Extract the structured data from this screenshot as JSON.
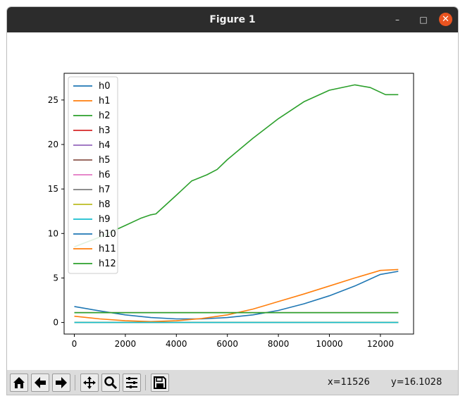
{
  "window": {
    "title": "Figure 1"
  },
  "toolbar": {
    "buttons": [
      "home-icon",
      "back-arrow-icon",
      "forward-arrow-icon",
      "pan-icon",
      "zoom-icon",
      "subplots-icon",
      "save-icon"
    ],
    "coord_x": "x=11526",
    "coord_y": "y=16.1028"
  },
  "colors": {
    "titlebar": "#2c2c2c",
    "close": "#e95420"
  },
  "chart_data": {
    "type": "line",
    "xlim": [
      -400,
      13300
    ],
    "ylim": [
      -1.3,
      28.0
    ],
    "xticks": [
      0,
      2000,
      4000,
      6000,
      8000,
      10000,
      12000
    ],
    "xtick_labels": [
      "0",
      "2000",
      "4000",
      "6000",
      "8000",
      "10000",
      "12000"
    ],
    "yticks": [
      0,
      5,
      10,
      15,
      20,
      25
    ],
    "ytick_labels": [
      "0",
      "5",
      "10",
      "15",
      "20",
      "25"
    ],
    "legend": "upper-left",
    "series": [
      {
        "name": "h0",
        "color": "#1f77b4",
        "x": [
          0,
          1000,
          2000,
          3000,
          4000,
          5000,
          6000,
          7000,
          8000,
          9000,
          10000,
          11000,
          12000,
          12700
        ],
        "y": [
          1.8,
          1.3,
          0.85,
          0.55,
          0.4,
          0.4,
          0.55,
          0.85,
          1.35,
          2.1,
          3.0,
          4.1,
          5.4,
          5.75
        ]
      },
      {
        "name": "h1",
        "color": "#ff7f0e",
        "x": [
          0,
          1000,
          2000,
          3000,
          4000,
          5000,
          6000,
          7000,
          8000,
          9000,
          10000,
          11000,
          12000,
          12700
        ],
        "y": [
          0.7,
          0.4,
          0.2,
          0.1,
          0.2,
          0.45,
          0.85,
          1.5,
          2.35,
          3.2,
          4.1,
          5.0,
          5.85,
          5.95
        ]
      },
      {
        "name": "h2",
        "color": "#2ca02c",
        "x": [
          0,
          1000,
          2000,
          2600,
          3000,
          3200,
          4000,
          4600,
          5200,
          5600,
          6000,
          7000,
          8000,
          9000,
          10000,
          11000,
          11600,
          12200,
          12700
        ],
        "y": [
          8.5,
          9.6,
          10.9,
          11.7,
          12.1,
          12.2,
          14.3,
          15.9,
          16.6,
          17.2,
          18.3,
          20.7,
          22.9,
          24.8,
          26.1,
          26.7,
          26.4,
          25.6,
          25.6
        ]
      },
      {
        "name": "h3",
        "color": "#d62728",
        "x": [
          0,
          12700
        ],
        "y": [
          0,
          0
        ]
      },
      {
        "name": "h4",
        "color": "#9467bd",
        "x": [
          0,
          12700
        ],
        "y": [
          0,
          0
        ]
      },
      {
        "name": "h5",
        "color": "#8c564b",
        "x": [
          0,
          12700
        ],
        "y": [
          0,
          0
        ]
      },
      {
        "name": "h6",
        "color": "#e377c2",
        "x": [
          0,
          12700
        ],
        "y": [
          0,
          0
        ]
      },
      {
        "name": "h7",
        "color": "#7f7f7f",
        "x": [
          0,
          12700
        ],
        "y": [
          0,
          0
        ]
      },
      {
        "name": "h8",
        "color": "#bcbd22",
        "x": [
          0,
          12700
        ],
        "y": [
          0,
          0
        ]
      },
      {
        "name": "h9",
        "color": "#17becf",
        "x": [
          0,
          12700
        ],
        "y": [
          0,
          0
        ]
      },
      {
        "name": "h10",
        "color": "#1f77b4",
        "x": [
          0,
          12700
        ],
        "y": [
          1.1,
          1.1
        ]
      },
      {
        "name": "h11",
        "color": "#ff7f0e",
        "x": [
          0,
          12700
        ],
        "y": [
          1.1,
          1.1
        ]
      },
      {
        "name": "h12",
        "color": "#2ca02c",
        "x": [
          0,
          12700
        ],
        "y": [
          1.1,
          1.1
        ]
      }
    ]
  }
}
